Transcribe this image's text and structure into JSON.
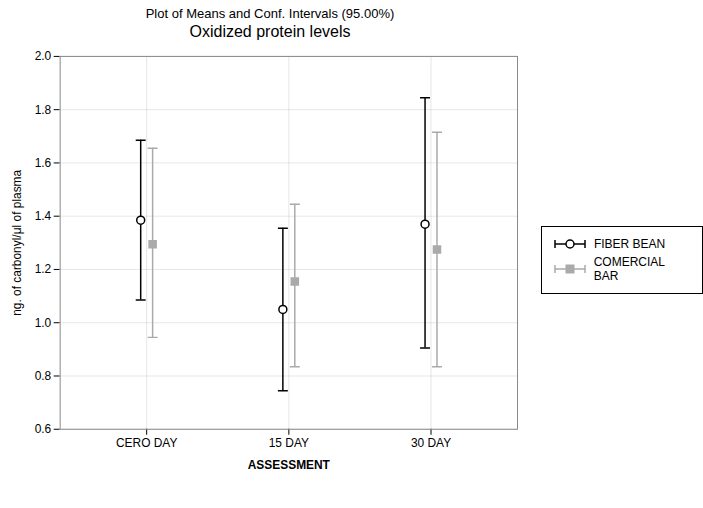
{
  "chart_data": {
    "type": "errorbar",
    "title": "Plot of Means and Conf. Intervals (95.00%)",
    "subtitle": "Oxidized protein levels",
    "xlabel": "ASSESSMENT",
    "ylabel": "ng. of carbonyl/μl of plasma",
    "categories": [
      "CERO DAY",
      "15 DAY",
      "30 DAY"
    ],
    "series": [
      {
        "name": "FIBER BEAN",
        "color": "#000000",
        "marker": "circle",
        "values": [
          1.385,
          1.05,
          1.37
        ],
        "ci_low": [
          1.085,
          0.745,
          0.905
        ],
        "ci_high": [
          1.685,
          1.355,
          1.845
        ]
      },
      {
        "name": "COMERCIAL BAR",
        "color": "#aaaaaa",
        "marker": "square",
        "values": [
          1.295,
          1.155,
          1.275
        ],
        "ci_low": [
          0.945,
          0.835,
          0.835
        ],
        "ci_high": [
          1.655,
          1.445,
          1.715
        ]
      }
    ],
    "ylim": [
      0.6,
      2.0
    ],
    "yticks": [
      0.6,
      0.8,
      {
        "value": 1,
        "label": "1.0"
      },
      1.2,
      1.4,
      1.6,
      1.8,
      {
        "value": 2,
        "label": "2.0"
      }
    ],
    "grid": true,
    "legend": "right"
  }
}
